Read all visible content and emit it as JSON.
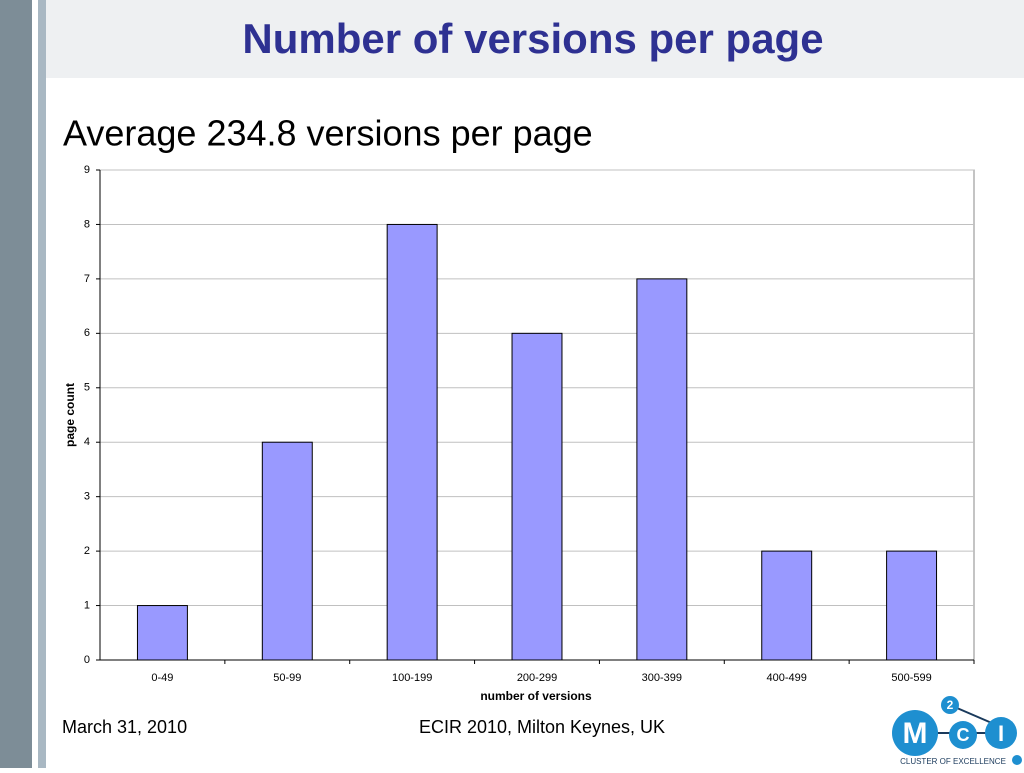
{
  "slide": {
    "title": "Number of versions per page",
    "subtitle": "Average 234.8 versions per page",
    "footer_date": "March 31, 2010",
    "footer_venue": "ECIR 2010, Milton Keynes, UK",
    "logo": {
      "letters": [
        "M",
        "2",
        "C",
        "I"
      ],
      "tagline": "CLUSTER OF EXCELLENCE"
    }
  },
  "chart_data": {
    "type": "bar",
    "x_label": "number of versions",
    "y_label": "page count",
    "categories": [
      "0-49",
      "50-99",
      "100-199",
      "200-299",
      "300-399",
      "400-499",
      "500-599"
    ],
    "values": [
      1,
      4,
      8,
      6,
      7,
      2,
      2
    ],
    "color": "#9999ff",
    "ylim": [
      0,
      9
    ],
    "yticks": [
      0,
      1,
      2,
      3,
      4,
      5,
      6,
      7,
      8,
      9
    ],
    "grid": true
  }
}
